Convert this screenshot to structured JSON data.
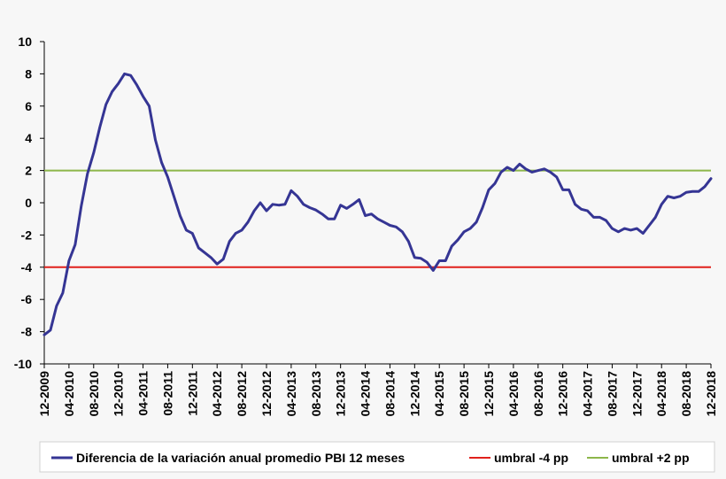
{
  "chart_data": {
    "type": "line",
    "title": "",
    "xlabel": "",
    "ylabel": "",
    "ylim": [
      -10,
      10
    ],
    "yticks": [
      -10,
      -8,
      -6,
      -4,
      -2,
      0,
      2,
      4,
      6,
      8,
      10
    ],
    "xticks": [
      "12-2009",
      "04-2010",
      "08-2010",
      "12-2010",
      "04-2011",
      "08-2011",
      "12-2011",
      "04-2012",
      "08-2012",
      "12-2012",
      "04-2013",
      "08-2013",
      "12-2013",
      "04-2014",
      "08-2014",
      "12-2014",
      "04-2015",
      "08-2015",
      "12-2015",
      "04-2016",
      "08-2016",
      "12-2016",
      "04-2017",
      "08-2017",
      "12-2017",
      "04-2018",
      "08-2018",
      "12-2018"
    ],
    "grid": false,
    "legend_position": "bottom",
    "series": [
      {
        "name": "Diferencia de la variación anual promedio PBI 12 meses",
        "color": "#353594",
        "values": [
          -8.2,
          -7.9,
          -6.4,
          -5.6,
          -3.6,
          -2.6,
          -0.2,
          1.8,
          3.1,
          4.7,
          6.1,
          6.9,
          7.4,
          8.0,
          7.9,
          7.3,
          6.6,
          6.0,
          3.9,
          2.5,
          1.6,
          0.4,
          -0.8,
          -1.7,
          -1.9,
          -2.8,
          -3.1,
          -3.4,
          -3.8,
          -3.5,
          -2.4,
          -1.9,
          -1.7,
          -1.2,
          -0.5,
          0.0,
          -0.5,
          -0.1,
          -0.15,
          -0.1,
          0.75,
          0.4,
          -0.1,
          -0.3,
          -0.45,
          -0.7,
          -1.0,
          -1.0,
          -0.15,
          -0.35,
          -0.1,
          0.2,
          -0.8,
          -0.7,
          -1.0,
          -1.2,
          -1.4,
          -1.5,
          -1.8,
          -2.4,
          -3.4,
          -3.45,
          -3.7,
          -4.2,
          -3.6,
          -3.6,
          -2.7,
          -2.3,
          -1.8,
          -1.6,
          -1.2,
          -0.3,
          0.8,
          1.2,
          1.9,
          2.2,
          2.0,
          2.4,
          2.1,
          1.9,
          2.0,
          2.1,
          1.9,
          1.6,
          0.8,
          0.8,
          -0.1,
          -0.4,
          -0.5,
          -0.9,
          -0.9,
          -1.1,
          -1.6,
          -1.8,
          -1.6,
          -1.7,
          -1.6,
          -1.9,
          -1.4,
          -0.9,
          -0.1,
          0.4,
          0.3,
          0.4,
          0.65,
          0.7,
          0.7,
          1.0,
          1.5
        ]
      },
      {
        "name": "umbral -4 pp",
        "color": "#e0211c",
        "constant": -4
      },
      {
        "name": "umbral +2 pp",
        "color": "#8db64a",
        "constant": 2
      }
    ]
  }
}
